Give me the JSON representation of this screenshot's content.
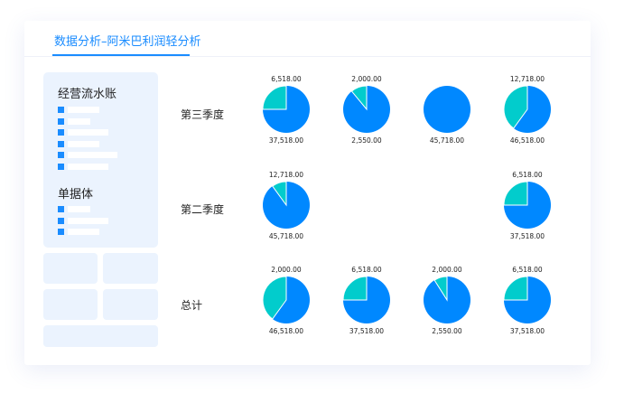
{
  "tab": {
    "title": "数据分析–阿米巴利润轻分析"
  },
  "sidebar": {
    "section1_title": "经营流水账",
    "section2_title": "单据体"
  },
  "colors": {
    "primary": "#0088ff",
    "secondary": "#02cccc",
    "accent": "#1a8cff"
  },
  "chart_data": {
    "type": "pie",
    "rows": [
      {
        "label": "第三季度",
        "pies": [
          {
            "col": 0,
            "top": "6,518.00",
            "bottom": "37,518.00",
            "secondary_fraction": 0.25
          },
          {
            "col": 1,
            "top": "2,000.00",
            "bottom": "2,550.00",
            "secondary_fraction": 0.11
          },
          {
            "col": 2,
            "top": "",
            "bottom": "45,718.00",
            "secondary_fraction": 0
          },
          {
            "col": 3,
            "top": "12,718.00",
            "bottom": "46,518.00",
            "secondary_fraction": 0.4
          }
        ]
      },
      {
        "label": "第二季度",
        "pies": [
          {
            "col": 0,
            "top": "12,718.00",
            "bottom": "45,718.00",
            "secondary_fraction": 0.1
          },
          {
            "col": 3,
            "top": "6,518.00",
            "bottom": "37,518.00",
            "secondary_fraction": 0.25
          }
        ]
      },
      {
        "label": "总计",
        "pies": [
          {
            "col": 0,
            "top": "2,000.00",
            "bottom": "46,518.00",
            "secondary_fraction": 0.4
          },
          {
            "col": 1,
            "top": "6,518.00",
            "bottom": "37,518.00",
            "secondary_fraction": 0.25
          },
          {
            "col": 2,
            "top": "2,000.00",
            "bottom": "2,550.00",
            "secondary_fraction": 0.09
          },
          {
            "col": 3,
            "top": "6,518.00",
            "bottom": "37,518.00",
            "secondary_fraction": 0.25
          }
        ]
      }
    ]
  }
}
